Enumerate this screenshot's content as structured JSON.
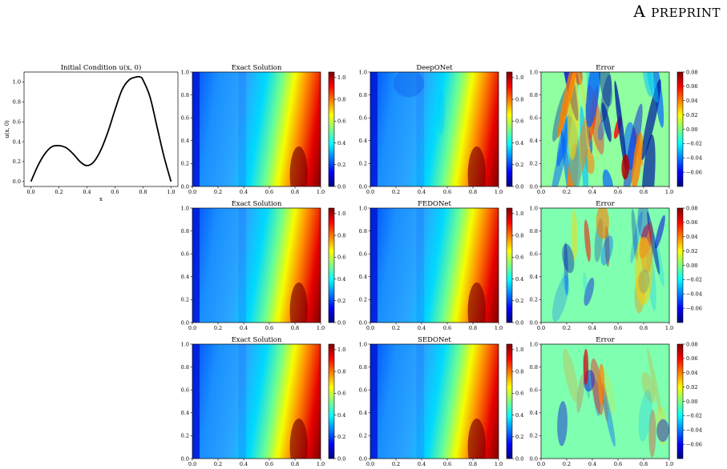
{
  "header": {
    "first_letter": "A",
    "rest": "preprint"
  },
  "colors": {
    "jet": [
      "#00007f",
      "#0000ff",
      "#007fff",
      "#00ffff",
      "#7fff7f",
      "#ffff00",
      "#ff7f00",
      "#ff0000",
      "#7f0000"
    ]
  },
  "chart_data": [
    {
      "type": "line",
      "title": "Initial Condition u(x, 0)",
      "xlabel": "x",
      "ylabel": "u(x, 0)",
      "xlim": [
        0.0,
        1.0
      ],
      "ylim": [
        -0.05,
        1.1
      ],
      "xticks": [
        "0.0",
        "0.2",
        "0.4",
        "0.6",
        "0.8",
        "1.0"
      ],
      "yticks": [
        "0.0",
        "0.2",
        "0.4",
        "0.6",
        "0.8",
        "1.0"
      ],
      "series": [
        {
          "x": [
            0.0,
            0.05,
            0.1,
            0.15,
            0.2,
            0.25,
            0.3,
            0.35,
            0.4,
            0.45,
            0.5,
            0.55,
            0.6,
            0.65,
            0.7,
            0.75,
            0.78,
            0.8,
            0.85,
            0.9,
            0.95,
            1.0
          ],
          "y": [
            0.0,
            0.16,
            0.28,
            0.35,
            0.36,
            0.34,
            0.28,
            0.2,
            0.16,
            0.2,
            0.32,
            0.5,
            0.72,
            0.92,
            1.02,
            1.05,
            1.05,
            1.02,
            0.85,
            0.55,
            0.25,
            0.0
          ]
        }
      ]
    },
    {
      "type": "heatmap",
      "title": "Exact Solution",
      "xticks": [
        "0.0",
        "0.2",
        "0.4",
        "0.6",
        "0.8",
        "1.0"
      ],
      "yticks": [
        "0.0",
        "0.2",
        "0.4",
        "0.6",
        "0.8",
        "1.0"
      ],
      "colorbar_ticks": [
        "0.0",
        "0.2",
        "0.4",
        "0.6",
        "0.8",
        "1.0"
      ],
      "vmin": 0.0,
      "vmax": 1.05
    },
    {
      "type": "heatmap",
      "title": "DeepONet",
      "xticks": [
        "0.0",
        "0.2",
        "0.4",
        "0.6",
        "0.8",
        "1.0"
      ],
      "yticks": [
        "0.0",
        "0.2",
        "0.4",
        "0.6",
        "0.8",
        "1.0"
      ],
      "colorbar_ticks": [
        "0.0",
        "0.2",
        "0.4",
        "0.6",
        "0.8",
        "1.0"
      ],
      "vmin": 0.0,
      "vmax": 1.05
    },
    {
      "type": "heatmap",
      "title": "Error",
      "xticks": [
        "0.0",
        "0.2",
        "0.4",
        "0.6",
        "0.8",
        "1.0"
      ],
      "yticks": [
        "0.0",
        "0.2",
        "0.4",
        "0.6",
        "0.8",
        "1.0"
      ],
      "colorbar_ticks": [
        "0.08",
        "0.06",
        "0.04",
        "0.02",
        "0.00",
        "−0.02",
        "−0.04",
        "−0.06"
      ],
      "vmin": -0.08,
      "vmax": 0.08
    },
    {
      "type": "heatmap",
      "title": "Exact Solution",
      "xticks": [
        "0.0",
        "0.2",
        "0.4",
        "0.6",
        "0.8",
        "1.0"
      ],
      "yticks": [
        "0.0",
        "0.2",
        "0.4",
        "0.6",
        "0.8",
        "1.0"
      ],
      "colorbar_ticks": [
        "0.0",
        "0.2",
        "0.4",
        "0.6",
        "0.8",
        "1.0"
      ],
      "vmin": 0.0,
      "vmax": 1.05
    },
    {
      "type": "heatmap",
      "title": "FEDONet",
      "xticks": [
        "0.0",
        "0.2",
        "0.4",
        "0.6",
        "0.8",
        "1.0"
      ],
      "yticks": [
        "0.0",
        "0.2",
        "0.4",
        "0.6",
        "0.8",
        "1.0"
      ],
      "colorbar_ticks": [
        "0.0",
        "0.2",
        "0.4",
        "0.6",
        "0.8",
        "1.0"
      ],
      "vmin": 0.0,
      "vmax": 1.05
    },
    {
      "type": "heatmap",
      "title": "Error",
      "xticks": [
        "0.0",
        "0.2",
        "0.4",
        "0.6",
        "0.8",
        "1.0"
      ],
      "yticks": [
        "0.0",
        "0.2",
        "0.4",
        "0.6",
        "0.8",
        "1.0"
      ],
      "colorbar_ticks": [
        "0.08",
        "0.06",
        "0.04",
        "0.02",
        "0.00",
        "−0.02",
        "−0.04",
        "−0.06"
      ],
      "vmin": -0.08,
      "vmax": 0.08
    },
    {
      "type": "heatmap",
      "title": "Exact Solution",
      "xticks": [
        "0.0",
        "0.2",
        "0.4",
        "0.6",
        "0.8",
        "1.0"
      ],
      "yticks": [
        "0.0",
        "0.2",
        "0.4",
        "0.6",
        "0.8",
        "1.0"
      ],
      "colorbar_ticks": [
        "0.0",
        "0.2",
        "0.4",
        "0.6",
        "0.8",
        "1.0"
      ],
      "vmin": 0.0,
      "vmax": 1.05
    },
    {
      "type": "heatmap",
      "title": "SEDONet",
      "xticks": [
        "0.0",
        "0.2",
        "0.4",
        "0.6",
        "0.8",
        "1.0"
      ],
      "yticks": [
        "0.0",
        "0.2",
        "0.4",
        "0.6",
        "0.8",
        "1.0"
      ],
      "colorbar_ticks": [
        "0.0",
        "0.2",
        "0.4",
        "0.6",
        "0.8",
        "1.0"
      ],
      "vmin": 0.0,
      "vmax": 1.05
    },
    {
      "type": "heatmap",
      "title": "Error",
      "xticks": [
        "0.0",
        "0.2",
        "0.4",
        "0.6",
        "0.8",
        "1.0"
      ],
      "yticks": [
        "0.0",
        "0.2",
        "0.4",
        "0.6",
        "0.8",
        "1.0"
      ],
      "colorbar_ticks": [
        "0.08",
        "0.06",
        "0.04",
        "0.02",
        "0.00",
        "−0.02",
        "−0.04",
        "−0.06"
      ],
      "vmin": -0.08,
      "vmax": 0.08
    }
  ]
}
